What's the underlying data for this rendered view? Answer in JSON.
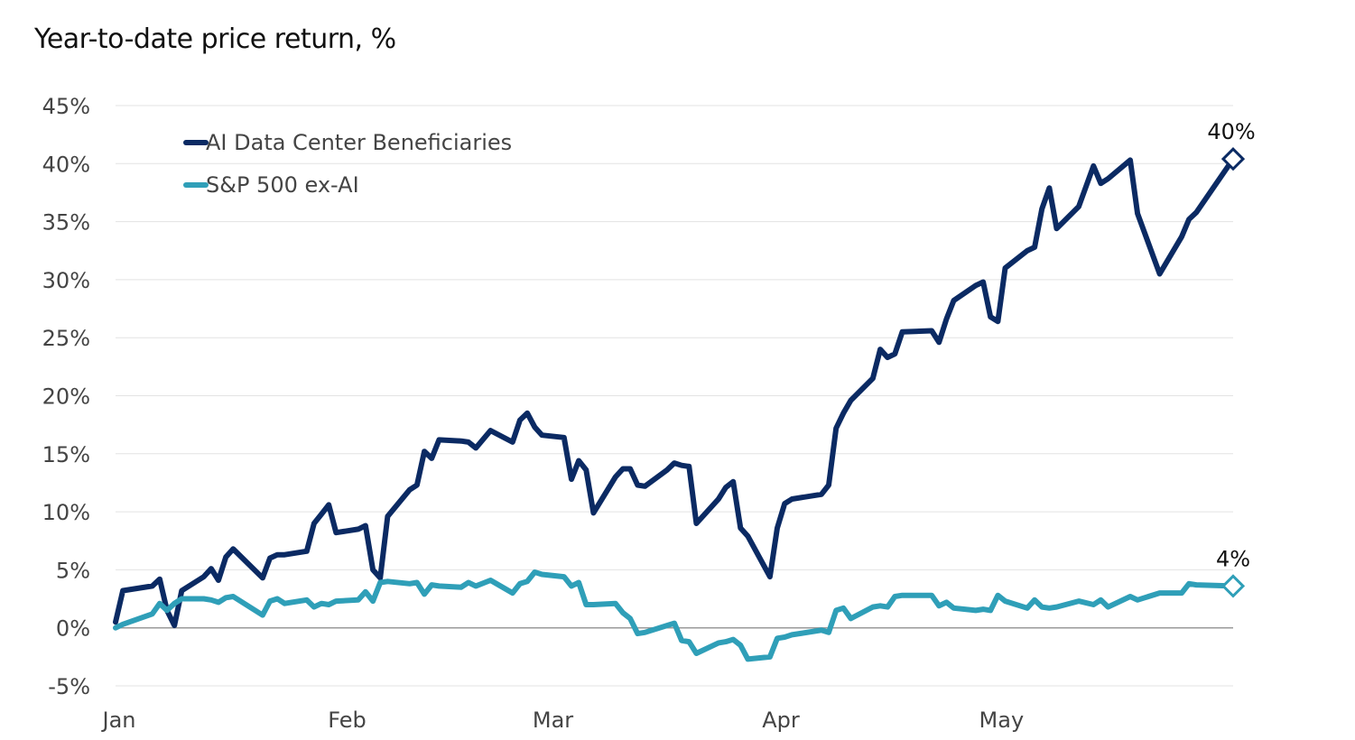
{
  "chart_data": {
    "type": "line",
    "title": "Year-to-date price return, %",
    "xlabel": "",
    "ylabel": "",
    "x_ticks": [
      "Jan",
      "Feb",
      "Mar",
      "Apr",
      "May"
    ],
    "y_ticks": [
      "45%",
      "40%",
      "35%",
      "30%",
      "25%",
      "20%",
      "15%",
      "10%",
      "5%",
      "0%",
      "-5%"
    ],
    "ylim": [
      -5,
      45
    ],
    "grid": true,
    "legend_position": "top-left",
    "series": [
      {
        "name": "AI Data Center Beneficiaries",
        "color": "#0b2a63",
        "end_label": "40%",
        "points": [
          [
            "2025-01-01",
            0.5
          ],
          [
            "2025-01-02",
            3.2
          ],
          [
            "2025-01-06",
            3.6
          ],
          [
            "2025-01-07",
            4.2
          ],
          [
            "2025-01-08",
            1.5
          ],
          [
            "2025-01-09",
            0.2
          ],
          [
            "2025-01-10",
            3.2
          ],
          [
            "2025-01-13",
            4.4
          ],
          [
            "2025-01-14",
            5.1
          ],
          [
            "2025-01-15",
            4.1
          ],
          [
            "2025-01-16",
            6.1
          ],
          [
            "2025-01-17",
            6.8
          ],
          [
            "2025-01-21",
            4.3
          ],
          [
            "2025-01-22",
            6.0
          ],
          [
            "2025-01-23",
            6.3
          ],
          [
            "2025-01-24",
            6.3
          ],
          [
            "2025-01-27",
            6.6
          ],
          [
            "2025-01-28",
            9.0
          ],
          [
            "2025-01-29",
            9.8
          ],
          [
            "2025-01-30",
            10.6
          ],
          [
            "2025-01-31",
            8.2
          ],
          [
            "2025-02-03",
            8.5
          ],
          [
            "2025-02-04",
            8.8
          ],
          [
            "2025-02-05",
            5.0
          ],
          [
            "2025-02-06",
            4.3
          ],
          [
            "2025-02-07",
            9.6
          ],
          [
            "2025-02-10",
            11.9
          ],
          [
            "2025-02-11",
            12.3
          ],
          [
            "2025-02-12",
            15.2
          ],
          [
            "2025-02-13",
            14.6
          ],
          [
            "2025-02-14",
            16.2
          ],
          [
            "2025-02-17",
            16.1
          ],
          [
            "2025-02-18",
            16.0
          ],
          [
            "2025-02-19",
            15.5
          ],
          [
            "2025-02-21",
            17.0
          ],
          [
            "2025-02-24",
            16.0
          ],
          [
            "2025-02-25",
            17.9
          ],
          [
            "2025-02-26",
            18.5
          ],
          [
            "2025-02-27",
            17.3
          ],
          [
            "2025-02-28",
            16.6
          ],
          [
            "2025-03-03",
            16.4
          ],
          [
            "2025-03-04",
            12.8
          ],
          [
            "2025-03-05",
            14.4
          ],
          [
            "2025-03-06",
            13.6
          ],
          [
            "2025-03-07",
            9.9
          ],
          [
            "2025-03-10",
            13.0
          ],
          [
            "2025-03-11",
            13.7
          ],
          [
            "2025-03-12",
            13.7
          ],
          [
            "2025-03-13",
            12.3
          ],
          [
            "2025-03-14",
            12.2
          ],
          [
            "2025-03-17",
            13.6
          ],
          [
            "2025-03-18",
            14.2
          ],
          [
            "2025-03-19",
            14.0
          ],
          [
            "2025-03-20",
            13.9
          ],
          [
            "2025-03-21",
            9.0
          ],
          [
            "2025-03-24",
            11.1
          ],
          [
            "2025-03-25",
            12.1
          ],
          [
            "2025-03-26",
            12.6
          ],
          [
            "2025-03-27",
            8.6
          ],
          [
            "2025-03-28",
            7.9
          ],
          [
            "2025-03-31",
            4.4
          ],
          [
            "2025-04-01",
            8.6
          ],
          [
            "2025-04-02",
            10.7
          ],
          [
            "2025-04-03",
            11.1
          ],
          [
            "2025-04-07",
            11.5
          ],
          [
            "2025-04-08",
            12.3
          ],
          [
            "2025-04-09",
            17.2
          ],
          [
            "2025-04-10",
            18.5
          ],
          [
            "2025-04-11",
            19.6
          ],
          [
            "2025-04-14",
            21.5
          ],
          [
            "2025-04-15",
            24.0
          ],
          [
            "2025-04-16",
            23.3
          ],
          [
            "2025-04-17",
            23.6
          ],
          [
            "2025-04-18",
            25.5
          ],
          [
            "2025-04-22",
            25.6
          ],
          [
            "2025-04-23",
            24.6
          ],
          [
            "2025-04-24",
            26.6
          ],
          [
            "2025-04-25",
            28.2
          ],
          [
            "2025-04-28",
            29.5
          ],
          [
            "2025-04-29",
            29.8
          ],
          [
            "2025-04-30",
            26.8
          ],
          [
            "2025-05-01",
            26.4
          ],
          [
            "2025-05-02",
            31.0
          ],
          [
            "2025-05-05",
            32.5
          ],
          [
            "2025-05-06",
            32.8
          ],
          [
            "2025-05-07",
            36.1
          ],
          [
            "2025-05-08",
            37.9
          ],
          [
            "2025-05-09",
            34.4
          ],
          [
            "2025-05-12",
            36.3
          ],
          [
            "2025-05-14",
            39.8
          ],
          [
            "2025-05-15",
            38.3
          ],
          [
            "2025-05-16",
            38.7
          ],
          [
            "2025-05-19",
            40.3
          ],
          [
            "2025-05-20",
            35.7
          ],
          [
            "2025-05-23",
            30.5
          ],
          [
            "2025-05-26",
            33.7
          ],
          [
            "2025-05-27",
            35.2
          ],
          [
            "2025-05-28",
            35.8
          ],
          [
            "2025-06-02",
            40.4
          ]
        ]
      },
      {
        "name": "S&P 500 ex-AI",
        "color": "#2f9fb8",
        "end_label": "4%",
        "points": [
          [
            "2025-01-01",
            0.0
          ],
          [
            "2025-01-02",
            0.3
          ],
          [
            "2025-01-06",
            1.2
          ],
          [
            "2025-01-07",
            2.1
          ],
          [
            "2025-01-08",
            1.5
          ],
          [
            "2025-01-09",
            2.1
          ],
          [
            "2025-01-10",
            2.5
          ],
          [
            "2025-01-13",
            2.5
          ],
          [
            "2025-01-14",
            2.4
          ],
          [
            "2025-01-15",
            2.2
          ],
          [
            "2025-01-16",
            2.6
          ],
          [
            "2025-01-17",
            2.7
          ],
          [
            "2025-01-21",
            1.1
          ],
          [
            "2025-01-22",
            2.3
          ],
          [
            "2025-01-23",
            2.5
          ],
          [
            "2025-01-24",
            2.1
          ],
          [
            "2025-01-27",
            2.4
          ],
          [
            "2025-01-28",
            1.8
          ],
          [
            "2025-01-29",
            2.1
          ],
          [
            "2025-01-30",
            2.0
          ],
          [
            "2025-01-31",
            2.3
          ],
          [
            "2025-02-03",
            2.4
          ],
          [
            "2025-02-04",
            3.1
          ],
          [
            "2025-02-05",
            2.3
          ],
          [
            "2025-02-06",
            3.9
          ],
          [
            "2025-02-07",
            4.0
          ],
          [
            "2025-02-10",
            3.8
          ],
          [
            "2025-02-11",
            3.9
          ],
          [
            "2025-02-12",
            2.9
          ],
          [
            "2025-02-13",
            3.7
          ],
          [
            "2025-02-14",
            3.6
          ],
          [
            "2025-02-17",
            3.5
          ],
          [
            "2025-02-18",
            3.9
          ],
          [
            "2025-02-19",
            3.6
          ],
          [
            "2025-02-21",
            4.1
          ],
          [
            "2025-02-24",
            3.0
          ],
          [
            "2025-02-25",
            3.8
          ],
          [
            "2025-02-26",
            4.0
          ],
          [
            "2025-02-27",
            4.8
          ],
          [
            "2025-02-28",
            4.6
          ],
          [
            "2025-03-03",
            4.4
          ],
          [
            "2025-03-04",
            3.6
          ],
          [
            "2025-03-05",
            3.9
          ],
          [
            "2025-03-06",
            2.0
          ],
          [
            "2025-03-07",
            2.0
          ],
          [
            "2025-03-10",
            2.1
          ],
          [
            "2025-03-11",
            1.3
          ],
          [
            "2025-03-12",
            0.8
          ],
          [
            "2025-03-13",
            -0.5
          ],
          [
            "2025-03-14",
            -0.4
          ],
          [
            "2025-03-17",
            0.2
          ],
          [
            "2025-03-18",
            0.4
          ],
          [
            "2025-03-19",
            -1.1
          ],
          [
            "2025-03-20",
            -1.2
          ],
          [
            "2025-03-21",
            -2.2
          ],
          [
            "2025-03-24",
            -1.3
          ],
          [
            "2025-03-25",
            -1.2
          ],
          [
            "2025-03-26",
            -1.0
          ],
          [
            "2025-03-27",
            -1.5
          ],
          [
            "2025-03-28",
            -2.7
          ],
          [
            "2025-03-31",
            -2.5
          ],
          [
            "2025-04-01",
            -0.9
          ],
          [
            "2025-04-02",
            -0.8
          ],
          [
            "2025-04-03",
            -0.6
          ],
          [
            "2025-04-07",
            -0.2
          ],
          [
            "2025-04-08",
            -0.4
          ],
          [
            "2025-04-09",
            1.5
          ],
          [
            "2025-04-10",
            1.7
          ],
          [
            "2025-04-11",
            0.8
          ],
          [
            "2025-04-14",
            1.8
          ],
          [
            "2025-04-15",
            1.9
          ],
          [
            "2025-04-16",
            1.8
          ],
          [
            "2025-04-17",
            2.7
          ],
          [
            "2025-04-18",
            2.8
          ],
          [
            "2025-04-22",
            2.8
          ],
          [
            "2025-04-23",
            1.9
          ],
          [
            "2025-04-24",
            2.2
          ],
          [
            "2025-04-25",
            1.7
          ],
          [
            "2025-04-28",
            1.5
          ],
          [
            "2025-04-29",
            1.6
          ],
          [
            "2025-04-30",
            1.5
          ],
          [
            "2025-05-01",
            2.8
          ],
          [
            "2025-05-02",
            2.3
          ],
          [
            "2025-05-05",
            1.7
          ],
          [
            "2025-05-06",
            2.4
          ],
          [
            "2025-05-07",
            1.8
          ],
          [
            "2025-05-08",
            1.7
          ],
          [
            "2025-05-09",
            1.8
          ],
          [
            "2025-05-12",
            2.3
          ],
          [
            "2025-05-14",
            2.0
          ],
          [
            "2025-05-15",
            2.4
          ],
          [
            "2025-05-16",
            1.8
          ],
          [
            "2025-05-19",
            2.7
          ],
          [
            "2025-05-20",
            2.4
          ],
          [
            "2025-05-23",
            3.0
          ],
          [
            "2025-05-26",
            3.0
          ],
          [
            "2025-05-27",
            3.8
          ],
          [
            "2025-05-28",
            3.7
          ],
          [
            "2025-06-02",
            3.6
          ]
        ]
      }
    ]
  }
}
